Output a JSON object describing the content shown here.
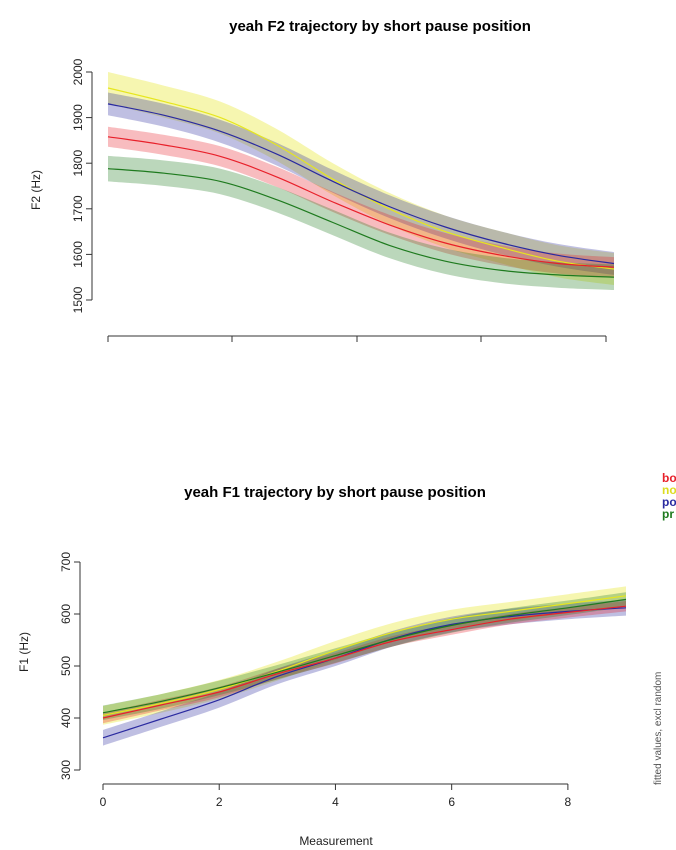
{
  "colors": {
    "before": "#e8202a",
    "none": "#e6e61e",
    "post": "#2a2aa0",
    "pre": "#1e7a1e"
  },
  "legend": {
    "items": [
      {
        "label": "bo",
        "color": "#e8202a"
      },
      {
        "label": "no",
        "color": "#dcdc20"
      },
      {
        "label": "po",
        "color": "#2a2aa0"
      },
      {
        "label": "pr",
        "color": "#1e7a1e"
      }
    ]
  },
  "side_note": "fitted values, excl random",
  "chart_data": [
    {
      "type": "line",
      "title": "yeah F2 trajectory by short pause position",
      "xlabel": "",
      "ylabel": "F2 (Hz)",
      "xlim": [
        0,
        9
      ],
      "ylim": [
        1500,
        2000
      ],
      "yticks": [
        "1500",
        "1600",
        "1700",
        "1800",
        "1900",
        "2000"
      ],
      "xticks": [
        "",
        "",
        "",
        "",
        ""
      ],
      "x": [
        0,
        1,
        2,
        3,
        4,
        5,
        6,
        7,
        8,
        9
      ],
      "series": [
        {
          "key": "none",
          "values": [
            1965,
            1935,
            1900,
            1840,
            1765,
            1700,
            1650,
            1615,
            1585,
            1568
          ],
          "ci": 35
        },
        {
          "key": "post",
          "values": [
            1930,
            1905,
            1870,
            1820,
            1760,
            1705,
            1660,
            1625,
            1598,
            1580
          ],
          "ci": 25
        },
        {
          "key": "before",
          "values": [
            1858,
            1840,
            1815,
            1770,
            1715,
            1665,
            1625,
            1598,
            1580,
            1572
          ],
          "ci": 22
        },
        {
          "key": "pre",
          "values": [
            1788,
            1778,
            1760,
            1720,
            1670,
            1620,
            1585,
            1565,
            1555,
            1550
          ],
          "ci": 28
        }
      ]
    },
    {
      "type": "line",
      "title": "yeah F1 trajectory by short pause position",
      "xlabel": "Measurement",
      "ylabel": "F1 (Hz)",
      "xlim": [
        0,
        9
      ],
      "ylim": [
        300,
        700
      ],
      "yticks": [
        "300",
        "400",
        "500",
        "600",
        "700"
      ],
      "xticks": [
        "0",
        "2",
        "4",
        "6",
        "8"
      ],
      "x": [
        0,
        1,
        2,
        3,
        4,
        5,
        6,
        7,
        8,
        9
      ],
      "series": [
        {
          "key": "none",
          "values": [
            405,
            428,
            455,
            490,
            530,
            565,
            590,
            605,
            620,
            635
          ],
          "ci": 18
        },
        {
          "key": "post",
          "values": [
            362,
            398,
            435,
            480,
            515,
            553,
            580,
            595,
            605,
            612
          ],
          "ci": 15
        },
        {
          "key": "before",
          "values": [
            400,
            425,
            450,
            485,
            515,
            548,
            570,
            590,
            603,
            615
          ],
          "ci": 10
        },
        {
          "key": "pre",
          "values": [
            410,
            432,
            458,
            488,
            520,
            552,
            578,
            597,
            612,
            628
          ],
          "ci": 14
        }
      ]
    }
  ]
}
